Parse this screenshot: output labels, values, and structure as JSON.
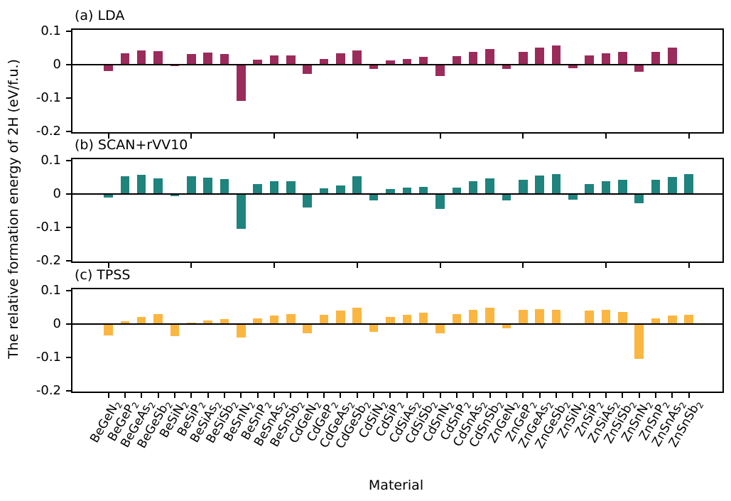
{
  "figure": {
    "ylabel": "The relative formation energy of 2H (eV/f.u.)",
    "xlabel": "Material"
  },
  "chart_data": {
    "type": "bar",
    "layout": "3 vertically stacked subplots, shared x axis",
    "grid": false,
    "legend_position": "none",
    "ylim": [
      -0.2,
      0.1
    ],
    "yticks": [
      0.1,
      0,
      -0.1,
      -0.2
    ],
    "yticklabels": [
      "0.1",
      "0",
      "-0.1",
      "-0.2"
    ],
    "xlabel": "Material",
    "ylabel": "The relative formation energy of 2H (eV/f.u.)",
    "categories": [
      "BeGeN2",
      "BeGeP2",
      "BeGeAs2",
      "BeGeSb2",
      "BeSiN2",
      "BeSiP2",
      "BeSiAs2",
      "BeSiSb2",
      "BeSnN2",
      "BeSnP2",
      "BeSnAs2",
      "BeSnSb2",
      "CdGeN2",
      "CdGeP2",
      "CdGeAs2",
      "CdGeSb2",
      "CdSiN2",
      "CdSiP2",
      "CdSiAs2",
      "CdSiSb2",
      "CdSnN2",
      "CdSnP2",
      "CdSnAs2",
      "CdSnSb2",
      "ZnGeN2",
      "ZnGeP2",
      "ZnGeAs2",
      "ZnGeSb2",
      "ZnSiN2",
      "ZnSiP2",
      "ZnSiAs2",
      "ZnSiSb2",
      "ZnSnN2",
      "ZnSnP2",
      "ZnSnAs2",
      "ZnSnSb2"
    ],
    "series": [
      {
        "title": "(a) LDA",
        "name": "LDA",
        "color": "#9A2B5A",
        "values": [
          -0.02,
          0.034,
          0.042,
          0.04,
          -0.004,
          0.033,
          0.036,
          0.032,
          -0.108,
          0.015,
          0.027,
          0.028,
          -0.028,
          0.018,
          0.034,
          0.042,
          -0.013,
          0.012,
          0.018,
          0.024,
          -0.033,
          0.026,
          0.039,
          0.048,
          -0.012,
          0.039,
          0.052,
          0.057,
          -0.01,
          0.029,
          0.035,
          0.038,
          -0.022,
          0.038,
          0.051,
          -0.003
        ]
      },
      {
        "title": "(b) SCAN+rVV10",
        "name": "SCAN+rVV10",
        "color": "#1F837E",
        "values": [
          -0.01,
          0.053,
          0.058,
          0.048,
          -0.007,
          0.053,
          0.05,
          0.045,
          -0.105,
          0.031,
          0.039,
          0.039,
          -0.04,
          0.017,
          0.025,
          0.053,
          -0.02,
          0.015,
          0.02,
          0.022,
          -0.045,
          0.02,
          0.038,
          0.048,
          -0.02,
          0.042,
          0.055,
          0.06,
          -0.018,
          0.031,
          0.038,
          0.043,
          -0.027,
          0.042,
          0.051,
          0.06
        ]
      },
      {
        "title": "(c) TPSS",
        "name": "TPSS",
        "color": "#FBB641",
        "values": [
          -0.035,
          0.009,
          0.022,
          0.03,
          -0.036,
          0.005,
          0.011,
          0.016,
          -0.04,
          0.018,
          0.025,
          0.031,
          -0.028,
          0.027,
          0.04,
          0.05,
          -0.024,
          0.022,
          0.027,
          0.035,
          -0.027,
          0.03,
          0.044,
          0.05,
          -0.013,
          0.042,
          0.045,
          0.042,
          0.0,
          0.041,
          0.042,
          0.037,
          -0.104,
          0.017,
          0.025,
          0.028
        ]
      }
    ]
  }
}
